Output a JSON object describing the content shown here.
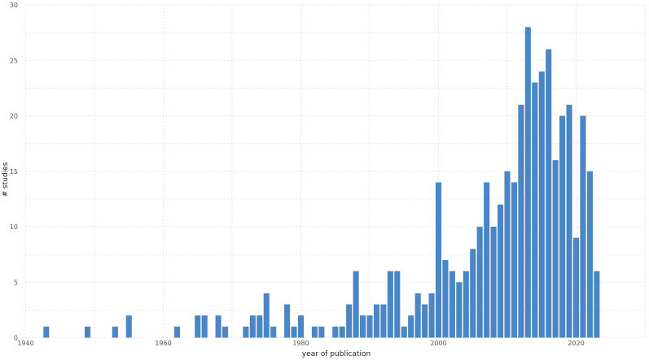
{
  "chart_data": {
    "type": "bar",
    "xlabel": "year of publication",
    "ylabel": "# studies",
    "xlim": [
      1940,
      2030
    ],
    "ylim": [
      0,
      30
    ],
    "x_ticks": [
      1940,
      1960,
      1980,
      2000,
      2020
    ],
    "y_ticks": [
      0,
      5,
      10,
      15,
      20,
      25,
      30
    ],
    "grid": true,
    "bar_color": "#4a86c5",
    "x": [
      1943,
      1949,
      1953,
      1955,
      1962,
      1965,
      1966,
      1968,
      1969,
      1972,
      1973,
      1974,
      1975,
      1976,
      1978,
      1979,
      1980,
      1982,
      1983,
      1985,
      1986,
      1987,
      1988,
      1989,
      1990,
      1991,
      1992,
      1993,
      1994,
      1995,
      1996,
      1997,
      1998,
      1999,
      2000,
      2001,
      2002,
      2003,
      2004,
      2005,
      2006,
      2007,
      2008,
      2009,
      2010,
      2011,
      2012,
      2013,
      2014,
      2015,
      2016,
      2017,
      2018,
      2019,
      2020,
      2021,
      2022,
      2023
    ],
    "values": [
      1,
      1,
      1,
      2,
      1,
      2,
      2,
      2,
      1,
      1,
      2,
      2,
      4,
      1,
      3,
      1,
      2,
      1,
      1,
      1,
      1,
      3,
      6,
      2,
      2,
      3,
      3,
      6,
      6,
      1,
      2,
      4,
      3,
      4,
      14,
      7,
      6,
      5,
      6,
      8,
      10,
      14,
      10,
      12,
      15,
      14,
      21,
      28,
      23,
      24,
      26,
      16,
      20,
      21,
      9,
      20,
      15,
      6
    ]
  }
}
